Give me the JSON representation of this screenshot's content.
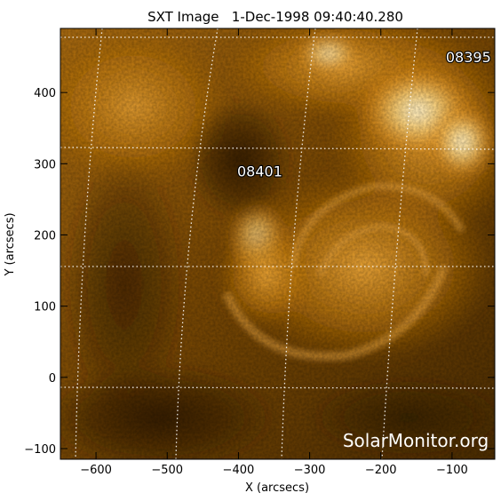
{
  "title": "SXT Image   1-Dec-1998 09:40:40.280",
  "watermark": "SolarMonitor.org",
  "x_axis": {
    "label": "X (arcsecs)",
    "range": [
      -650,
      -40
    ],
    "ticks": [
      -600,
      -500,
      -400,
      -300,
      -200,
      -100
    ],
    "tick_labels": [
      "−600",
      "−500",
      "−400",
      "−300",
      "−200",
      "−100"
    ]
  },
  "y_axis": {
    "label": "Y (arcsecs)",
    "range": [
      -115,
      490
    ],
    "ticks": [
      -100,
      0,
      100,
      200,
      300,
      400
    ],
    "tick_labels": [
      "−100",
      "0",
      "100",
      "200",
      "300",
      "400"
    ]
  },
  "regions": [
    {
      "number": "08401",
      "x": -370,
      "y": 290
    },
    {
      "number": "08395",
      "x": -77,
      "y": 450
    }
  ],
  "colors": {
    "dark": "#3a2200",
    "mid": "#9a5f06",
    "bright": "#ffdd8c",
    "grid": "#ffffff",
    "axis": "#000000"
  }
}
